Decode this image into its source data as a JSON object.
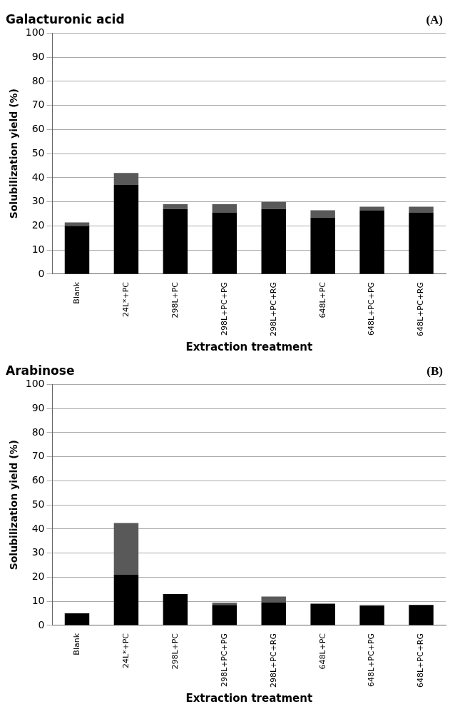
{
  "chart_data": [
    {
      "type": "bar",
      "title": "Galacturonic acid",
      "annotations": [
        "(A)"
      ],
      "xlabel": "Extraction treatment",
      "ylabel": "Solubilization yield (%)",
      "categories": [
        "Blank",
        "24L*+PC",
        "298L+PC",
        "298L+PC+PG",
        "298L+PC+RG",
        "648L+PC",
        "648L+PC+PG",
        "648L+PC+RG"
      ],
      "stacked": true,
      "series": [
        {
          "color": "#000000",
          "values": [
            20,
            37,
            27,
            25.5,
            27,
            23.5,
            26.5,
            25.5
          ]
        },
        {
          "color": "#595959",
          "values": [
            1.5,
            5,
            2,
            3.5,
            3,
            3,
            1.5,
            2.5
          ]
        }
      ],
      "ylim": [
        0,
        100
      ],
      "yticks": [
        0,
        10,
        20,
        30,
        40,
        50,
        60,
        70,
        80,
        90,
        100
      ],
      "grid": "y",
      "legend": false
    },
    {
      "type": "bar",
      "title": "Arabinose",
      "annotations": [
        "(B)"
      ],
      "xlabel": "Extraction treatment",
      "ylabel": "Solubilization yield (%)",
      "categories": [
        "Blank",
        "24L*+PC",
        "298L+PC",
        "298L+PC+PG",
        "298L+PC+RG",
        "648L+PC",
        "648L+PC+PG",
        "648L+PC+RG"
      ],
      "stacked": true,
      "series": [
        {
          "color": "#000000",
          "values": [
            5,
            21,
            13,
            8.5,
            9.5,
            9,
            8,
            8.5
          ]
        },
        {
          "color": "#595959",
          "values": [
            0,
            21.5,
            0,
            1,
            2.5,
            0,
            0.5,
            0
          ]
        }
      ],
      "ylim": [
        0,
        100
      ],
      "yticks": [
        0,
        10,
        20,
        30,
        40,
        50,
        60,
        70,
        80,
        90,
        100
      ],
      "grid": "y",
      "legend": false
    }
  ]
}
